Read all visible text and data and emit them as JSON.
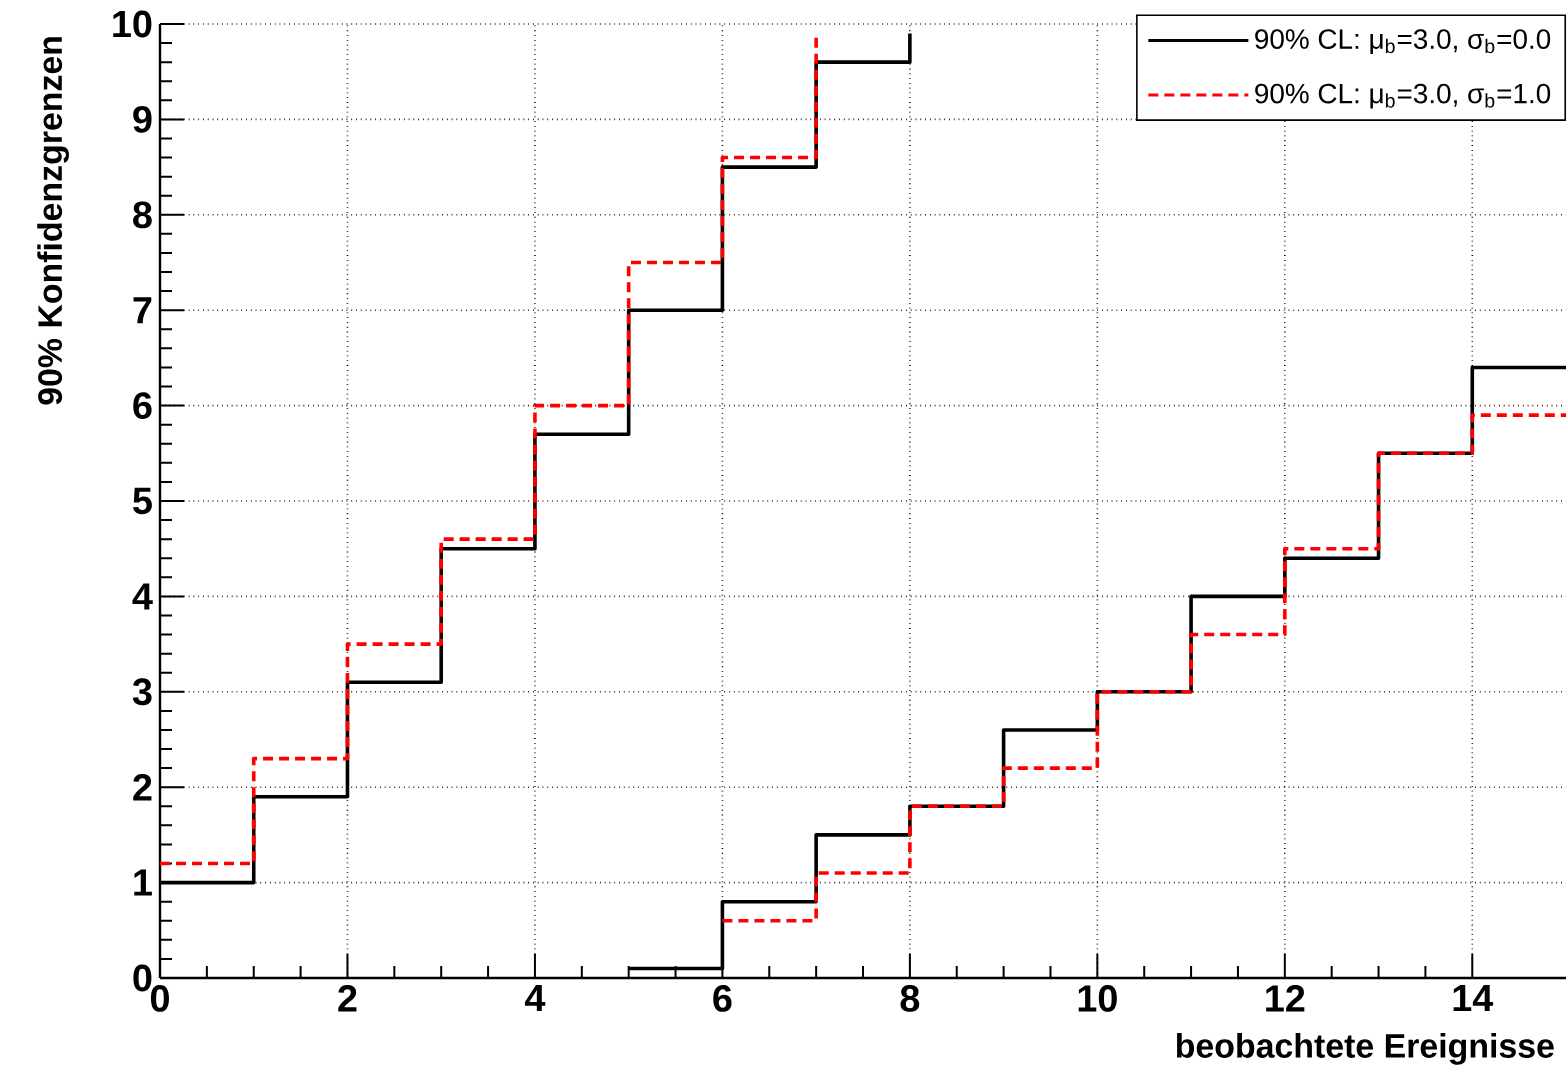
{
  "chart_data": {
    "type": "step",
    "xlabel": "beobachtete Ereignisse",
    "ylabel": "90% Konfidenzgrenzen",
    "xlim": [
      0,
      15
    ],
    "ylim": [
      0,
      10
    ],
    "xticks": [
      0,
      2,
      4,
      6,
      8,
      10,
      12,
      14
    ],
    "yticks": [
      0,
      1,
      2,
      3,
      4,
      5,
      6,
      7,
      8,
      9,
      10
    ],
    "grid": true,
    "legend": "top right",
    "series": [
      {
        "name": "90% CL: μ$_{b}$=3.0, σ$_{b}$=0.0",
        "color": "#000000",
        "line_style": "solid",
        "x": [
          0,
          1,
          2,
          3,
          4,
          5,
          6,
          7,
          8
        ],
        "values": [
          1.0,
          1.9,
          3.1,
          4.5,
          5.7,
          7.0,
          8.5,
          9.6,
          9.9
        ]
      },
      {
        "name": "90% CL: μ$_{b}$=3.0, σ$_{b}$=1.0",
        "color": "#ff0000",
        "line_style": "dashed",
        "x": [
          0,
          1,
          2,
          3,
          4,
          5,
          6,
          7
        ],
        "values": [
          1.2,
          2.3,
          3.5,
          4.6,
          6.0,
          7.5,
          8.6,
          9.9
        ]
      },
      {
        "color": "#000000",
        "line_style": "solid",
        "x": [
          5,
          6,
          7,
          8,
          9,
          10,
          11,
          12,
          13,
          14,
          15
        ],
        "values": [
          0.1,
          0.8,
          1.5,
          1.8,
          2.6,
          3.0,
          4.0,
          4.4,
          5.5,
          6.4,
          6.4
        ]
      },
      {
        "color": "#ff0000",
        "line_style": "dashed",
        "x": [
          6,
          7,
          8,
          9,
          10,
          11,
          12,
          13,
          14,
          15
        ],
        "values": [
          0.6,
          1.1,
          1.8,
          2.2,
          3.0,
          3.6,
          4.5,
          5.5,
          5.9,
          5.9
        ]
      }
    ]
  }
}
